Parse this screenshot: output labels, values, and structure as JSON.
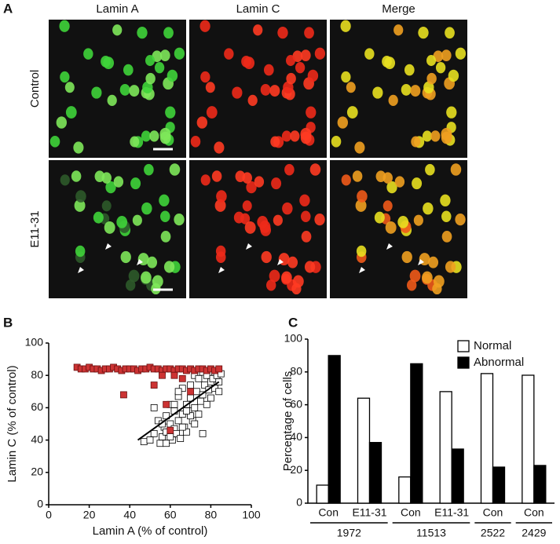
{
  "panel_letters": [
    "A",
    "B",
    "C"
  ],
  "panel_a": {
    "columns": [
      {
        "label": "Lamin A",
        "color": "#33cc33"
      },
      {
        "label": "Lamin C",
        "color": "#e8336b"
      },
      {
        "label": "Merge",
        "color": "#111111"
      }
    ],
    "rows": [
      "Control",
      "E11-31"
    ]
  },
  "chart_data": [
    {
      "type": "scatter",
      "xlabel": "Lamin A  (% of control)",
      "ylabel": "Lamin C (% of control)",
      "xlim": [
        0,
        100
      ],
      "ylim": [
        0,
        100
      ],
      "xticks": [
        0,
        20,
        40,
        60,
        80,
        100
      ],
      "yticks": [
        0,
        20,
        40,
        60,
        80,
        100
      ],
      "series": [
        {
          "color": "#ffffff",
          "x": [
            47,
            50,
            52,
            54,
            55,
            56,
            57,
            58,
            58,
            59,
            60,
            60,
            61,
            62,
            62,
            63,
            64,
            64,
            65,
            66,
            66,
            67,
            68,
            68,
            69,
            70,
            70,
            71,
            72,
            72,
            73,
            74,
            74,
            75,
            76,
            76,
            77,
            78,
            78,
            79,
            80,
            80,
            81,
            82,
            82,
            83,
            84,
            84,
            76,
            85,
            52,
            58,
            64,
            70,
            66,
            60,
            72,
            56,
            62,
            68
          ],
          "y": [
            39,
            40,
            44,
            52,
            38,
            42,
            48,
            38,
            55,
            45,
            50,
            62,
            40,
            47,
            58,
            44,
            52,
            67,
            41,
            56,
            72,
            48,
            62,
            45,
            58,
            66,
            74,
            52,
            60,
            80,
            70,
            56,
            78,
            64,
            68,
            82,
            74,
            62,
            80,
            71,
            76,
            66,
            78,
            72,
            82,
            80,
            76,
            70,
            44,
            81,
            60,
            45,
            70,
            55,
            48,
            42,
            50,
            50,
            62,
            58
          ]
        },
        {
          "color": "#cc3333",
          "x": [
            14,
            16,
            18,
            20,
            22,
            24,
            26,
            28,
            30,
            32,
            34,
            36,
            38,
            40,
            42,
            44,
            46,
            48,
            50,
            52,
            54,
            56,
            58,
            60,
            62,
            64,
            66,
            68,
            70,
            72,
            74,
            76,
            78,
            80,
            82,
            84,
            37,
            52,
            58,
            62,
            70,
            60,
            56,
            66
          ],
          "y": [
            85,
            84,
            84,
            85,
            84,
            84,
            83,
            84,
            84,
            85,
            84,
            83,
            84,
            84,
            84,
            83,
            84,
            84,
            85,
            84,
            84,
            83,
            84,
            84,
            83,
            84,
            84,
            83,
            84,
            83,
            84,
            84,
            83,
            84,
            83,
            84,
            68,
            74,
            62,
            80,
            70,
            46,
            80,
            78
          ]
        }
      ],
      "fit_line": {
        "x": [
          44,
          84
        ],
        "y": [
          40,
          76
        ]
      }
    },
    {
      "type": "bar",
      "ylabel": "Percentage of cells",
      "ylim": [
        0,
        100
      ],
      "yticks": [
        0,
        20,
        40,
        60,
        80,
        100
      ],
      "groups": [
        {
          "label": "1972",
          "categories": [
            "Con",
            "E11-31"
          ]
        },
        {
          "label": "11513",
          "categories": [
            "Con",
            "E11-31"
          ]
        },
        {
          "label": "2522",
          "categories": [
            "Con"
          ]
        },
        {
          "label": "2429",
          "categories": [
            "Con"
          ]
        }
      ],
      "series": [
        {
          "name": "Normal",
          "color": "#ffffff",
          "values": [
            11,
            64,
            16,
            68,
            79,
            78
          ]
        },
        {
          "name": "Abnormal",
          "color": "#000000",
          "values": [
            90,
            37,
            85,
            33,
            22,
            23
          ]
        }
      ],
      "legend": "top-right"
    }
  ]
}
